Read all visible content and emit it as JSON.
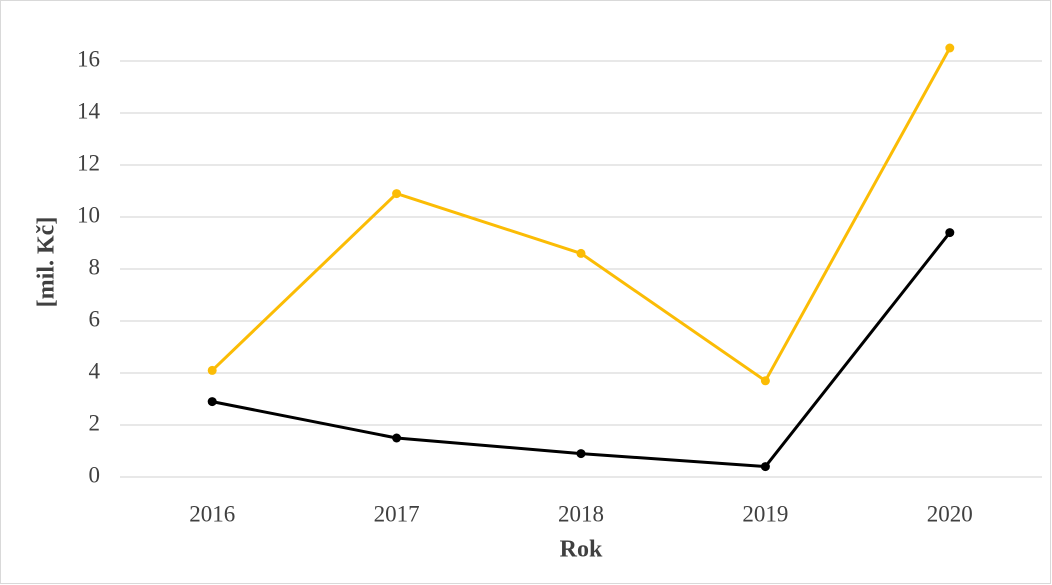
{
  "chart_data": {
    "type": "line",
    "x_label": "Rok",
    "y_label": "[mil. Kč]",
    "categories": [
      "2016",
      "2017",
      "2018",
      "2019",
      "2020"
    ],
    "series": [
      {
        "color": "#fbbc05",
        "values": [
          4.1,
          10.9,
          8.6,
          3.7,
          16.5
        ]
      },
      {
        "color": "#000000",
        "values": [
          2.9,
          1.5,
          0.9,
          0.4,
          9.4
        ]
      }
    ],
    "ylim": [
      0,
      16
    ],
    "yticks": [
      0,
      2,
      4,
      6,
      8,
      10,
      12,
      14,
      16
    ],
    "grid": true
  }
}
